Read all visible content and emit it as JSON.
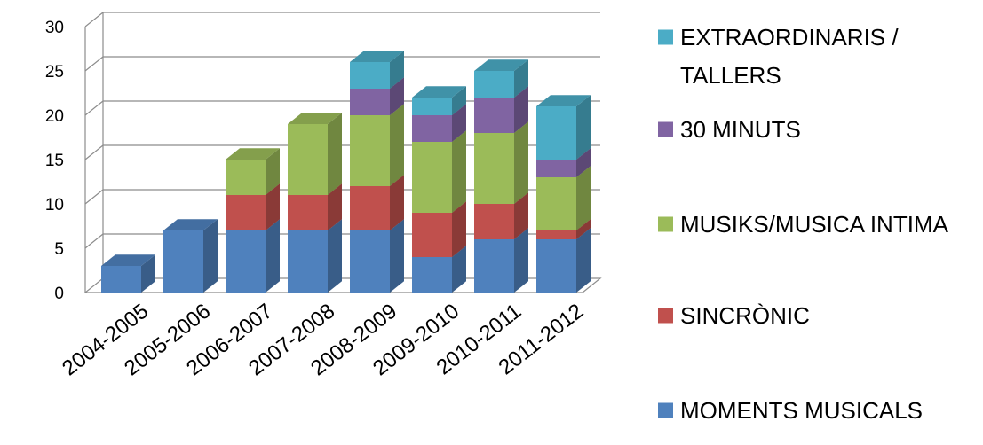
{
  "chart_data": {
    "type": "bar",
    "stacked": true,
    "three_d": true,
    "categories": [
      "2004-2005",
      "2005-2006",
      "2006-2007",
      "2007-2008",
      "2008-2009",
      "2009-2010",
      "2010-2011",
      "2011-2012"
    ],
    "series": [
      {
        "name": "MOMENTS MUSICALS",
        "color": "#4F81BD",
        "values": [
          3,
          7,
          7,
          7,
          7,
          4,
          6,
          6
        ]
      },
      {
        "name": "SINCRÒNIC",
        "color": "#C0504D",
        "values": [
          0,
          0,
          4,
          4,
          5,
          5,
          4,
          1
        ]
      },
      {
        "name": "MUSIKS/MUSICA INTIMA",
        "color": "#9BBB59",
        "values": [
          0,
          0,
          4,
          8,
          8,
          8,
          8,
          6
        ]
      },
      {
        "name": "30 MINUTS",
        "color": "#8064A2",
        "values": [
          0,
          0,
          0,
          0,
          3,
          3,
          4,
          2
        ]
      },
      {
        "name": "EXTRAORDINARIS / TALLERS",
        "color": "#4BACC6",
        "values": [
          0,
          0,
          0,
          0,
          3,
          2,
          3,
          6
        ]
      }
    ],
    "y_ticks": [
      "0",
      "5",
      "10",
      "15",
      "20",
      "25",
      "30"
    ],
    "ylim": [
      0,
      30
    ],
    "grid": true,
    "legend_position": "right",
    "legend_order": [
      "EXTRAORDINARIS / TALLERS",
      "30 MINUTS",
      "MUSIKS/MUSICA INTIMA",
      "SINCRÒNIC",
      "MOMENTS MUSICALS"
    ],
    "title": "",
    "xlabel": "",
    "ylabel": ""
  }
}
